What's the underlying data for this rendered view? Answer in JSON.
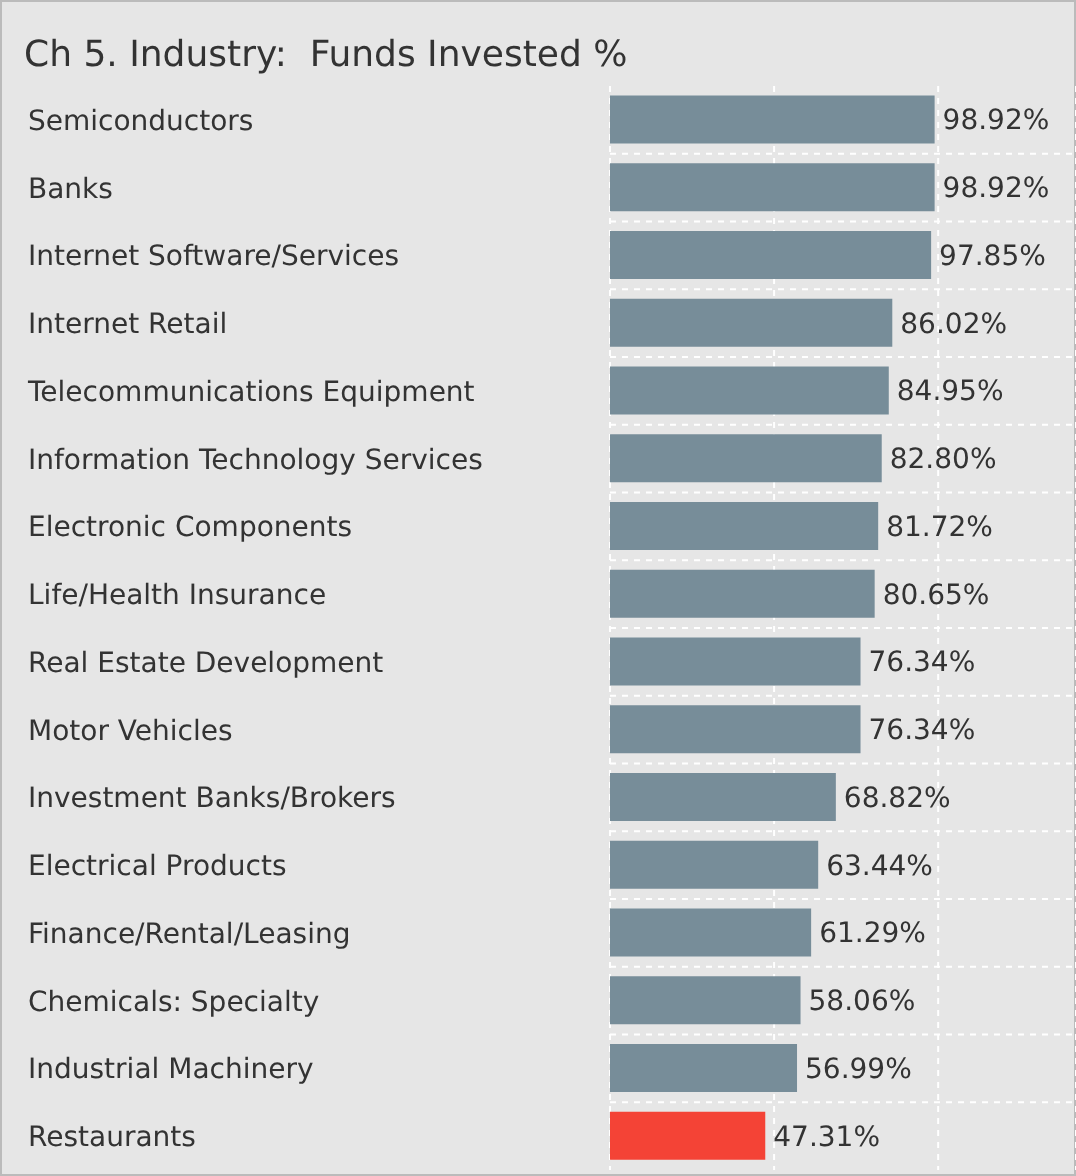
{
  "chart_data": {
    "type": "bar",
    "orientation": "horizontal",
    "title": "Ch 5. Industry:  Funds Invested %",
    "categories": [
      "Semiconductors",
      "Banks",
      "Internet Software/Services",
      "Internet Retail",
      "Telecommunications Equipment",
      "Information Technology Services",
      "Electronic Components",
      "Life/Health Insurance",
      "Real Estate Development",
      "Motor Vehicles",
      "Investment Banks/Brokers",
      "Electrical Products",
      "Finance/Rental/Leasing",
      "Chemicals: Specialty",
      "Industrial Machinery",
      "Restaurants"
    ],
    "values": [
      98.92,
      98.92,
      97.85,
      86.02,
      84.95,
      82.8,
      81.72,
      80.65,
      76.34,
      76.34,
      68.82,
      63.44,
      61.29,
      58.06,
      56.99,
      47.31
    ],
    "value_labels": [
      "98.92%",
      "98.92%",
      "97.85%",
      "86.02%",
      "84.95%",
      "82.80%",
      "81.72%",
      "80.65%",
      "76.34%",
      "76.34%",
      "68.82%",
      "63.44%",
      "61.29%",
      "58.06%",
      "56.99%",
      "47.31%"
    ],
    "colors": [
      "#778d99",
      "#778d99",
      "#778d99",
      "#778d99",
      "#778d99",
      "#778d99",
      "#778d99",
      "#778d99",
      "#778d99",
      "#778d99",
      "#778d99",
      "#778d99",
      "#778d99",
      "#778d99",
      "#778d99",
      "#f44336"
    ],
    "xlim": [
      0,
      142
    ],
    "xticks": [
      {
        "value": 0,
        "label": null
      },
      {
        "value": 50,
        "label": null
      },
      {
        "value": 100,
        "label": null
      }
    ],
    "tick_labels": "y",
    "grid": true
  }
}
